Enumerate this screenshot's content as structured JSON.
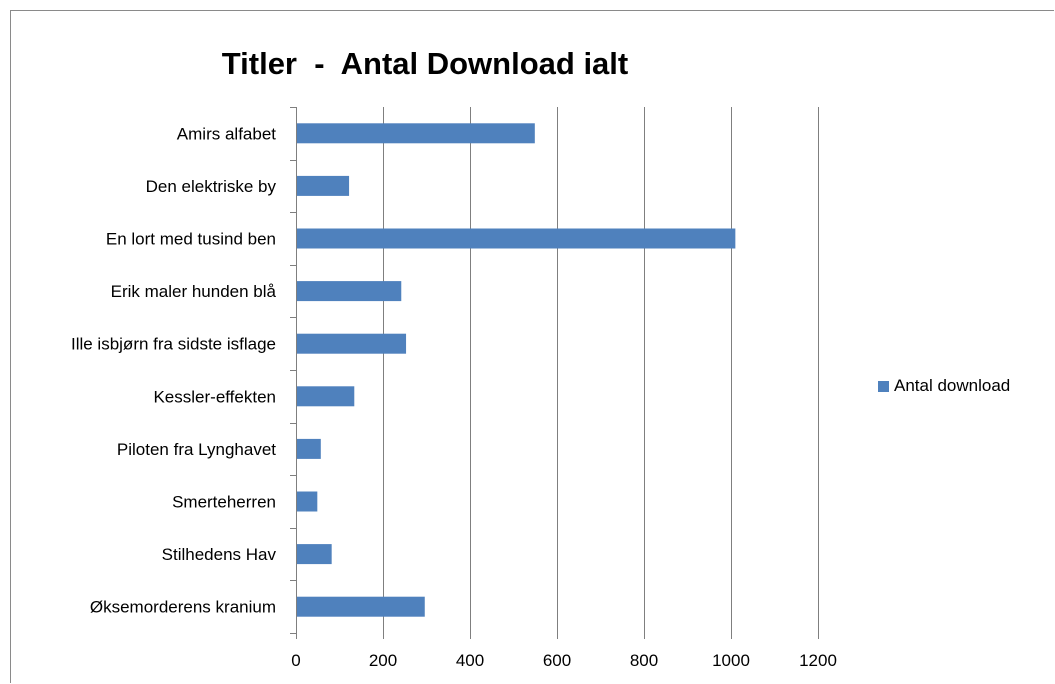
{
  "chart_data": {
    "type": "bar",
    "orientation": "horizontal",
    "title": "Titler  -  Antal Download ialt",
    "categories": [
      "Amirs alfabet",
      "Den elektriske by",
      "En lort med tusind ben",
      "Erik maler hunden blå",
      "Ille isbjørn fra sidste isflage",
      "Kessler-effekten",
      "Piloten fra Lynghavet",
      "Smerteherren",
      "Stilhedens Hav",
      "Øksemorderens kranium"
    ],
    "series": [
      {
        "name": "Antal download",
        "color": "#4f81bd",
        "values": [
          549,
          122,
          1010,
          242,
          253,
          134,
          57,
          49,
          82,
          296
        ]
      }
    ],
    "xlim": [
      0,
      1200
    ],
    "xticks": [
      0,
      200,
      400,
      600,
      800,
      1000,
      1200
    ],
    "grid": "vertical",
    "legend_position": "right"
  }
}
